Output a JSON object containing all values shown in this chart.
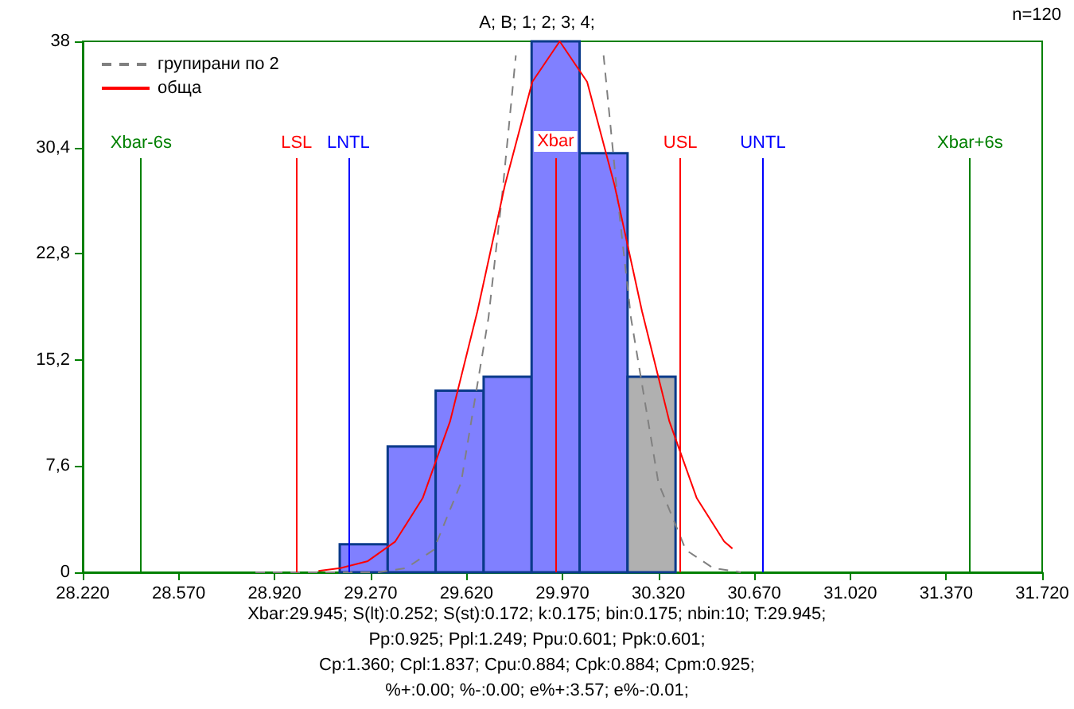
{
  "chart_data": {
    "type": "histogram",
    "title": "A; B; 1; 2; 3; 4;",
    "annotations": [
      "n=120",
      "Xbar:29.945; S(lt):0.252; S(st):0.172; k:0.175; bin:0.175; nbin:10; T:29.945;",
      "Pp:0.925; Ppl:1.249; Ppu:0.601; Ppk:0.601;",
      "Cp:1.360; Cpl:1.837; Cpu:0.884; Cpk:0.884; Cpm:0.925;",
      "%+:0.00; %-:0.00; e%+:3.57; e%-:0.01;"
    ],
    "bins": [
      29.1575,
      29.3325,
      29.5075,
      29.6825,
      29.8575,
      30.0325,
      30.2075,
      30.3825
    ],
    "values": [
      2,
      9,
      13,
      14,
      38,
      30,
      14
    ],
    "colors": [
      "#8080ff",
      "#8080ff",
      "#8080ff",
      "#8080ff",
      "#8080ff",
      "#8080ff",
      "#b0b0b0"
    ],
    "series": [
      {
        "name": "групирани по 2",
        "type": "line",
        "color": "#808080",
        "line_style": "dashed",
        "x": [
          28.85,
          29.0,
          29.2,
          29.3,
          29.4,
          29.5,
          29.6,
          29.7,
          29.75,
          29.78,
          29.8,
          29.96,
          30.12,
          30.14,
          30.17,
          30.22,
          30.32,
          30.42,
          30.52,
          30.62
        ],
        "values": [
          0,
          0,
          0,
          0,
          0.3,
          1.6,
          6.4,
          18.2,
          27,
          33,
          37,
          null,
          37,
          33,
          27,
          18.2,
          6.4,
          1.6,
          0.3,
          0
        ]
      },
      {
        "name": "обща",
        "type": "line",
        "color": "#ff0000",
        "line_style": "solid",
        "x": [
          29.08,
          29.16,
          29.26,
          29.36,
          29.46,
          29.56,
          29.66,
          29.76,
          29.86,
          29.96,
          30.06,
          30.16,
          30.26,
          30.36,
          30.46,
          30.56,
          30.59
        ],
        "values": [
          0.1,
          0.3,
          0.8,
          2.2,
          5.3,
          10.8,
          18.7,
          27.7,
          35.1,
          38,
          35.1,
          27.7,
          18.7,
          10.8,
          5.3,
          2.2,
          1.7
        ]
      }
    ],
    "xlim": [
      28.22,
      31.72
    ],
    "xticks": [
      {
        "value": 28.22,
        "label": "28.220"
      },
      {
        "value": 28.57,
        "label": "28.570"
      },
      {
        "value": 28.92,
        "label": "28.920"
      },
      {
        "value": 29.27,
        "label": "29.270"
      },
      {
        "value": 29.62,
        "label": "29.620"
      },
      {
        "value": 29.97,
        "label": "29.970"
      },
      {
        "value": 30.32,
        "label": "30.320"
      },
      {
        "value": 30.67,
        "label": "30.670"
      },
      {
        "value": 31.02,
        "label": "31.020"
      },
      {
        "value": 31.37,
        "label": "31.370"
      },
      {
        "value": 31.72,
        "label": "31.720"
      }
    ],
    "ylim": [
      0,
      38
    ],
    "yticks": [
      0,
      {
        "value": 7.6,
        "label": "7,6"
      },
      {
        "value": 15.2,
        "label": "15,2"
      },
      {
        "value": 22.8,
        "label": "22,8"
      },
      {
        "value": 30.4,
        "label": "30,4"
      },
      38
    ],
    "ref_lines": [
      {
        "axis": "x",
        "value": 28.433,
        "label": "Xbar-6s",
        "color": "#008000"
      },
      {
        "axis": "x",
        "value": 29.0,
        "label": "LSL",
        "color": "#ff0000"
      },
      {
        "axis": "x",
        "value": 29.189,
        "label": "LNTL",
        "color": "#0000ff"
      },
      {
        "axis": "x",
        "value": 29.945,
        "label": "Xbar",
        "color": "#ff0000"
      },
      {
        "axis": "x",
        "value": 30.4,
        "label": "USL",
        "color": "#ff0000"
      },
      {
        "axis": "x",
        "value": 30.701,
        "label": "UNTL",
        "color": "#0000ff"
      },
      {
        "axis": "x",
        "value": 31.457,
        "label": "Xbar+6s",
        "color": "#008000"
      }
    ],
    "legend": "top left",
    "grid": false
  }
}
